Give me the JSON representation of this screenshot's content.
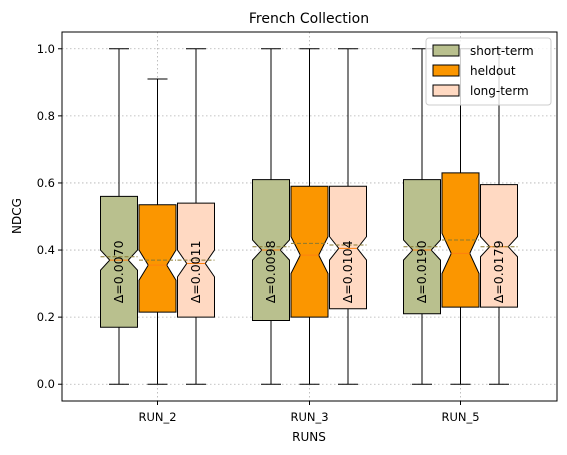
{
  "chart_data": {
    "type": "box",
    "title": "French Collection",
    "xlabel": "RUNS",
    "ylabel": "NDCG",
    "categories": [
      "RUN_2",
      "RUN_3",
      "RUN_5"
    ],
    "ylim": [
      -0.05,
      1.05
    ],
    "yticks": [
      "0.0",
      "0.2",
      "0.4",
      "0.6",
      "0.8",
      "1.0"
    ],
    "ytick_values": [
      0.0,
      0.2,
      0.4,
      0.6,
      0.8,
      1.0
    ],
    "grid": true,
    "legend_position": "upper right",
    "notched": true,
    "series": [
      {
        "name": "short-term",
        "color": "#b9c08e",
        "boxes": [
          {
            "whisker_low": 0.0,
            "q1": 0.17,
            "median": 0.37,
            "q3": 0.56,
            "whisker_high": 1.0,
            "mean": 0.38,
            "notch_low": 0.34,
            "notch_high": 0.4,
            "delta": "Δ=0.0070"
          },
          {
            "whisker_low": 0.0,
            "q1": 0.19,
            "median": 0.4,
            "q3": 0.61,
            "whisker_high": 1.0,
            "mean": 0.41,
            "notch_low": 0.37,
            "notch_high": 0.43,
            "delta": "Δ=0.0098"
          },
          {
            "whisker_low": 0.0,
            "q1": 0.21,
            "median": 0.4,
            "q3": 0.61,
            "whisker_high": 1.0,
            "mean": 0.41,
            "notch_low": 0.37,
            "notch_high": 0.43,
            "delta": "Δ=0.0190"
          }
        ]
      },
      {
        "name": "heldout",
        "color": "#fb9600",
        "boxes": [
          {
            "whisker_low": 0.0,
            "q1": 0.215,
            "median": 0.355,
            "q3": 0.535,
            "whisker_high": 0.91,
            "mean": 0.37,
            "notch_low": 0.31,
            "notch_high": 0.4
          },
          {
            "whisker_low": 0.0,
            "q1": 0.2,
            "median": 0.385,
            "q3": 0.59,
            "whisker_high": 1.0,
            "mean": 0.42,
            "notch_low": 0.33,
            "notch_high": 0.44
          },
          {
            "whisker_low": 0.0,
            "q1": 0.23,
            "median": 0.39,
            "q3": 0.63,
            "whisker_high": 1.0,
            "mean": 0.43,
            "notch_low": 0.33,
            "notch_high": 0.45
          }
        ]
      },
      {
        "name": "long-term",
        "color": "#ffd9c2",
        "boxes": [
          {
            "whisker_low": 0.0,
            "q1": 0.2,
            "median": 0.36,
            "q3": 0.54,
            "whisker_high": 1.0,
            "mean": 0.37,
            "notch_low": 0.32,
            "notch_high": 0.4,
            "delta": "Δ=0.0011"
          },
          {
            "whisker_low": 0.0,
            "q1": 0.225,
            "median": 0.405,
            "q3": 0.59,
            "whisker_high": 1.0,
            "mean": 0.415,
            "notch_low": 0.37,
            "notch_high": 0.44,
            "delta": "Δ=0.0104"
          },
          {
            "whisker_low": 0.0,
            "q1": 0.23,
            "median": 0.41,
            "q3": 0.595,
            "whisker_high": 1.0,
            "mean": 0.41,
            "notch_low": 0.38,
            "notch_high": 0.44,
            "delta": "Δ=0.0179"
          }
        ]
      }
    ]
  }
}
